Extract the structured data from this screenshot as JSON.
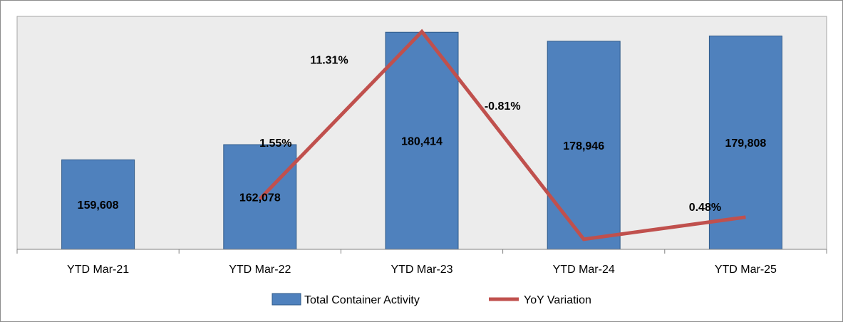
{
  "chart_data": {
    "type": "bar",
    "title": "",
    "xlabel": "",
    "ylabel": "",
    "categories": [
      "YTD Mar-21",
      "YTD Mar-22",
      "YTD Mar-23",
      "YTD Mar-24",
      "YTD Mar-25"
    ],
    "series": [
      {
        "name": "Total Container Activity",
        "type": "bar",
        "values": [
          159608,
          162078,
          180414,
          178946,
          179808
        ],
        "value_labels": [
          "159,608",
          "162,078",
          "180,414",
          "178,946",
          "179,808"
        ],
        "color": "#4f81bd"
      },
      {
        "name": "YoY Variation",
        "type": "line",
        "values_percent": [
          null,
          1.55,
          11.31,
          -0.81,
          0.48
        ],
        "value_labels": [
          "",
          "1.55%",
          "11.31%",
          "-0.81%",
          "0.48%"
        ],
        "color": "#c0504d"
      }
    ],
    "ylim": [
      145000,
      183000
    ],
    "ylim_secondary_percent": [
      -1.4,
      12.2
    ],
    "grid": false,
    "legend": "bottom",
    "plot_background": "#ececec"
  }
}
